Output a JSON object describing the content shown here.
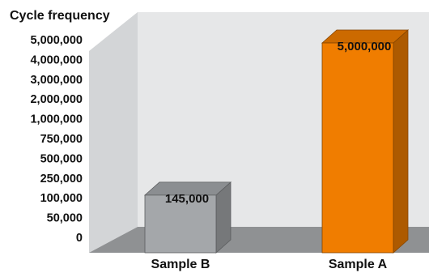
{
  "chart_data": {
    "type": "bar",
    "ylabel": "Cycle frequency",
    "categories": [
      "Sample B",
      "Sample A"
    ],
    "values": [
      145000,
      5000000
    ],
    "data_labels": [
      "145,000",
      "5,000,000"
    ],
    "yticks": [
      "5,000,000",
      "4,000,000",
      "3,000,000",
      "2,000,000",
      "1,000,000",
      "750,000",
      "500,000",
      "250,000",
      "100,000",
      "50,000",
      "0"
    ],
    "colors": [
      "#a4a7aa",
      "#f07d00"
    ],
    "style": "3d",
    "grid": false
  }
}
